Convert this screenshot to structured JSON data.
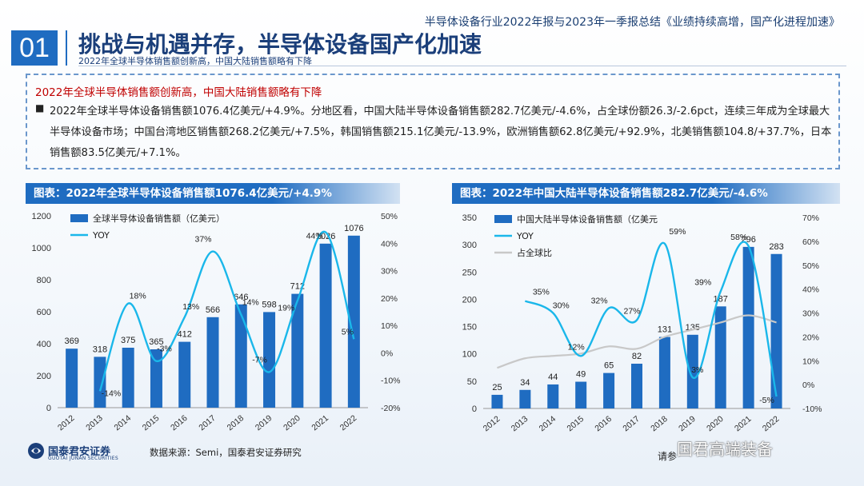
{
  "header": {
    "report_title": "半导体设备行业2022年报与2023年一季报总结《业绩持续高增，国产化进程加速》",
    "section_number": "01",
    "main_title": "挑战与机遇并存，半导体设备国产化加速",
    "sub_title": "2022年全球半导体销售额创新高，中国大陆销售额略有下降"
  },
  "summary": {
    "heading": "2022年全球半导体销售额创新高，中国大陆销售额略有下降",
    "bullet": "■",
    "text": "2022年全球半导体设备销售额1076.4亿美元/+4.9%。分地区看，中国大陆半导体设备销售额282.7亿美元/-4.6%，占全球份额26.3/-2.6pct，连续三年成为全球最大半导体设备市场；中国台湾地区销售额268.2亿美元/+7.5%，韩国销售额215.1亿美元/-13.9%，欧洲销售额62.8亿美元/+92.9%，北美销售额104.8/+37.7%，日本销售额83.5亿美元/+7.1%。"
  },
  "panels": {
    "left_title": "图表：2022年全球半导体设备销售额1076.4亿美元/+4.9%",
    "right_title": "图表：2022年中国大陆半导体设备销售额282.7亿美元/-4.6%"
  },
  "footer": {
    "logo_name": "国泰君安证券",
    "logo_sub": "GUOTAI JUNAN SECURITIES",
    "source": "数据来源：Semi，国泰君安证券研究",
    "right_text": "请参",
    "wechat": "国君高端装备"
  },
  "colors": {
    "primary": "#1f6cc1",
    "line": "#1ab7ea",
    "grey": "#c8c8c8",
    "title": "#1b3f7a",
    "red": "#c00000"
  },
  "chart_data": [
    {
      "type": "bar",
      "categories": [
        "2012",
        "2013",
        "2014",
        "2015",
        "2016",
        "2017",
        "2018",
        "2019",
        "2020",
        "2021",
        "2022"
      ],
      "series": [
        {
          "name": "全球半导体设备销售额（亿美元）",
          "type": "bar",
          "axis": "left",
          "values": [
            369,
            318,
            375,
            365,
            412,
            566,
            646,
            598,
            712,
            1026,
            1076
          ]
        },
        {
          "name": "YOY",
          "type": "line",
          "axis": "right",
          "values": [
            null,
            -14,
            18,
            -3,
            13,
            37,
            14,
            -7,
            19,
            44,
            5
          ]
        }
      ],
      "left_axis": {
        "min": 0,
        "max": 1200,
        "ticks": [
          0,
          200,
          400,
          600,
          800,
          1000,
          1200
        ]
      },
      "right_axis": {
        "min": -20,
        "max": 50,
        "ticks": [
          "-20%",
          "-10%",
          "0%",
          "10%",
          "20%",
          "30%",
          "40%",
          "50%"
        ]
      },
      "yoy_labels": [
        "",
        "-14%",
        "18%",
        "-3%",
        "13%",
        "37%",
        "14%",
        "-7%",
        "19%",
        "44%",
        "5%"
      ]
    },
    {
      "type": "bar",
      "categories": [
        "2012",
        "2013",
        "2014",
        "2015",
        "2016",
        "2017",
        "2018",
        "2019",
        "2020",
        "2021",
        "2022"
      ],
      "series": [
        {
          "name": "中国大陆半导体设备销售额（亿美元",
          "type": "bar",
          "axis": "left",
          "values": [
            25,
            34,
            44,
            49,
            65,
            82,
            131,
            135,
            187,
            296,
            283
          ]
        },
        {
          "name": "YOY",
          "type": "line",
          "axis": "right",
          "values": [
            null,
            35,
            30,
            12,
            32,
            27,
            59,
            3,
            39,
            58,
            -5
          ]
        },
        {
          "name": "占全球比",
          "type": "line",
          "axis": "right",
          "values": [
            7,
            11,
            12,
            13,
            16,
            15,
            20,
            23,
            26,
            29,
            26
          ]
        }
      ],
      "left_axis": {
        "min": 0,
        "max": 350,
        "ticks": [
          0,
          50,
          100,
          150,
          200,
          250,
          300,
          350
        ]
      },
      "right_axis": {
        "min": -10,
        "max": 70,
        "ticks": [
          "-10%",
          "0%",
          "10%",
          "20%",
          "30%",
          "40%",
          "50%",
          "60%",
          "70%"
        ]
      },
      "yoy_labels": [
        "",
        "35%",
        "30%",
        "12%",
        "32%",
        "27%",
        "59%",
        "3%",
        "39%",
        "58%",
        "-5%"
      ]
    }
  ]
}
